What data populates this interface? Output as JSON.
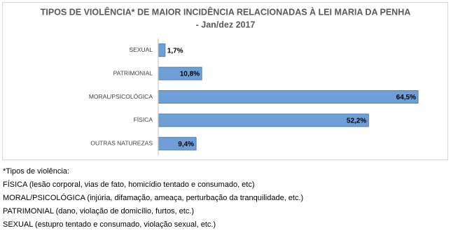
{
  "chart_data": {
    "type": "bar",
    "orientation": "horizontal",
    "title": "TIPOS DE VIOLÊNCIA* DE MAIOR INCIDÊNCIA RELACIONADAS À LEI MARIA DA PENHA",
    "subtitle": "- Jan/dez 2017",
    "categories": [
      "SEXUAL",
      "PATRIMONIAL",
      "MORAL/PSICOLÓGICA",
      "FÍSICA",
      "OUTRAS NATUREZAS"
    ],
    "values": [
      1.7,
      10.8,
      64.5,
      52.2,
      9.4
    ],
    "value_labels": [
      "1,7%",
      "10,8%",
      "64,5%",
      "52,2%",
      "9,4%"
    ],
    "color": "#6f9fd6"
  },
  "notes": {
    "heading": "*Tipos de violência:",
    "items": [
      "FÍSICA (lesão corporal, vias de fato, homicídio tentado e consumado, etc)",
      "MORAL/PSICOLÓGICA (injúria, difamação, ameaça, perturbação da tranquilidade, etc.)",
      "PATRIMONIAL (dano, violação de domicílio, furtos, etc.)",
      "SEXUAL (estupro tentado e consumado, violação sexual, etc.)"
    ]
  }
}
